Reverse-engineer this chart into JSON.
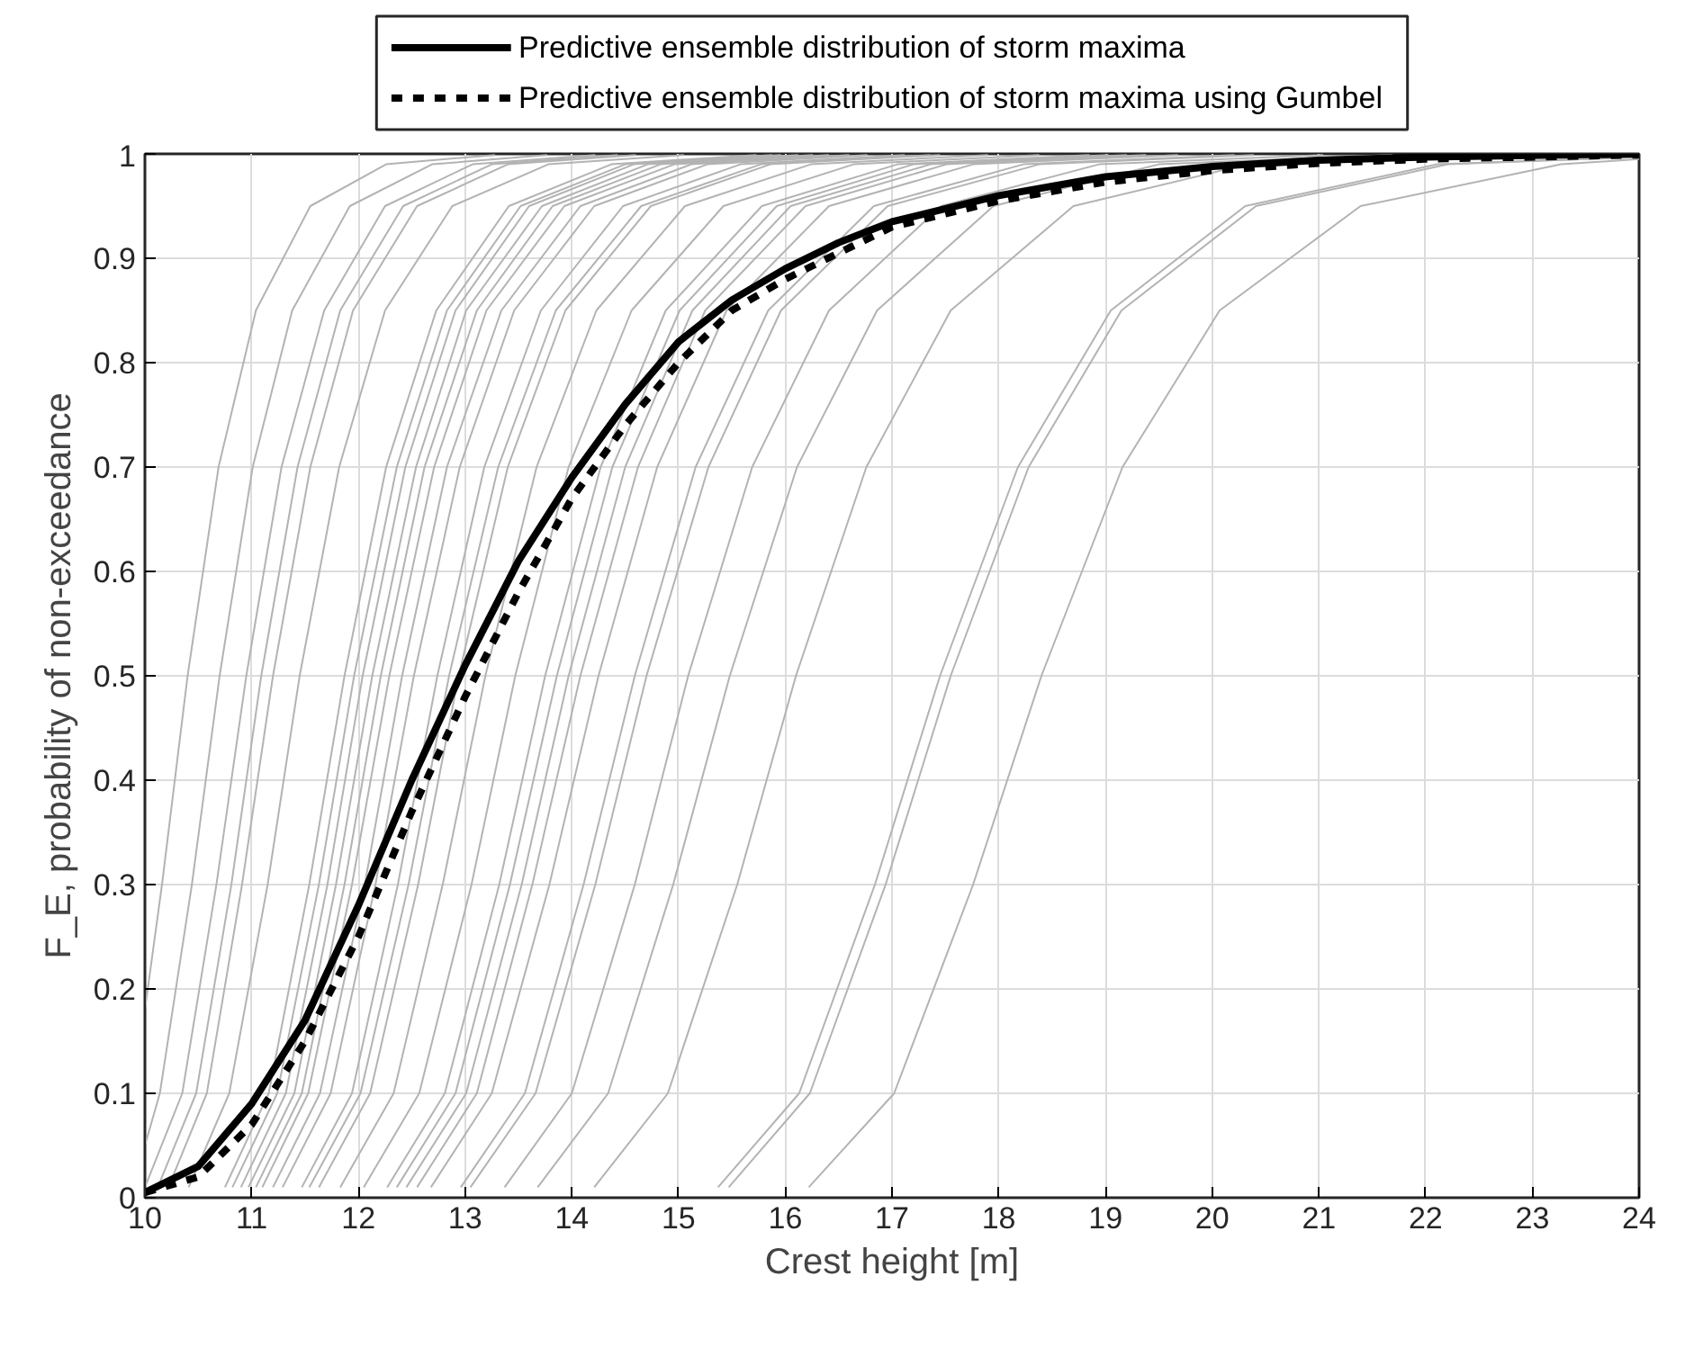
{
  "chart_data": {
    "type": "line",
    "xlabel": "Crest height [m]",
    "ylabel": "F_E, probability of non-exceedance",
    "xlim": [
      10,
      24
    ],
    "ylim": [
      0,
      1
    ],
    "xticks": [
      10,
      11,
      12,
      13,
      14,
      15,
      16,
      17,
      18,
      19,
      20,
      21,
      22,
      23,
      24
    ],
    "yticks": [
      0,
      0.1,
      0.2,
      0.3,
      0.4,
      0.5,
      0.6,
      0.7,
      0.8,
      0.9,
      1
    ],
    "grid": true,
    "legend": "top",
    "line_style": "solid",
    "marker": "none",
    "series": [
      {
        "color": "#b3b3b3",
        "x": [
          10,
          10.16,
          10.4,
          10.69,
          11.04,
          11.55,
          12.26,
          13.28
        ],
        "values": [
          0.18,
          0.3,
          0.5,
          0.7,
          0.85,
          0.95,
          0.99,
          0.999
        ]
      },
      {
        "color": "#b3b3b3",
        "x": [
          10,
          10.14,
          10.44,
          10.7,
          11.01,
          11.38,
          11.92,
          12.69,
          13.77
        ],
        "values": [
          0.05,
          0.1,
          0.3,
          0.5,
          0.7,
          0.85,
          0.95,
          0.99,
          0.999
        ]
      },
      {
        "color": "#b3b3b3",
        "x": [
          10.0,
          10.35,
          10.67,
          10.95,
          11.28,
          11.68,
          12.25,
          13.07,
          14.22
        ],
        "values": [
          0.01,
          0.1,
          0.3,
          0.5,
          0.7,
          0.85,
          0.95,
          0.99,
          0.999
        ]
      },
      {
        "color": "#b3b3b3",
        "x": [
          10.12,
          10.48,
          10.81,
          11.09,
          11.43,
          11.83,
          12.42,
          13.25,
          14.43
        ],
        "values": [
          0.01,
          0.1,
          0.3,
          0.5,
          0.7,
          0.85,
          0.95,
          0.99,
          0.999
        ]
      },
      {
        "color": "#b3b3b3",
        "x": [
          10.22,
          10.58,
          10.91,
          11.2,
          11.55,
          11.95,
          12.55,
          13.4,
          14.6
        ],
        "values": [
          0.01,
          0.1,
          0.3,
          0.5,
          0.7,
          0.85,
          0.95,
          0.99,
          0.999
        ]
      },
      {
        "color": "#b3b3b3",
        "x": [
          10.41,
          10.79,
          11.15,
          11.45,
          11.82,
          12.25,
          12.88,
          13.78,
          15.05
        ],
        "values": [
          0.01,
          0.1,
          0.3,
          0.5,
          0.7,
          0.85,
          0.95,
          0.99,
          0.999
        ]
      },
      {
        "color": "#b3b3b3",
        "x": [
          10.75,
          11.16,
          11.54,
          11.87,
          12.26,
          12.73,
          13.41,
          14.37,
          15.73
        ],
        "values": [
          0.01,
          0.1,
          0.3,
          0.5,
          0.7,
          0.85,
          0.95,
          0.99,
          0.999
        ]
      },
      {
        "color": "#b3b3b3",
        "x": [
          10.82,
          11.24,
          11.63,
          11.96,
          12.36,
          12.83,
          13.52,
          14.5,
          15.88
        ],
        "values": [
          0.01,
          0.1,
          0.3,
          0.5,
          0.7,
          0.85,
          0.95,
          0.99,
          0.999
        ]
      },
      {
        "color": "#b3b3b3",
        "x": [
          10.9,
          11.32,
          11.71,
          12.04,
          12.44,
          12.91,
          13.6,
          14.58,
          15.96
        ],
        "values": [
          0.01,
          0.1,
          0.3,
          0.5,
          0.7,
          0.85,
          0.95,
          0.99,
          0.999
        ]
      },
      {
        "color": "#b3b3b3",
        "x": [
          10.97,
          11.4,
          11.79,
          12.13,
          12.54,
          13.01,
          13.72,
          14.71,
          16.12
        ],
        "values": [
          0.01,
          0.1,
          0.3,
          0.5,
          0.7,
          0.85,
          0.95,
          0.99,
          0.999
        ]
      },
      {
        "color": "#b3b3b3",
        "x": [
          11.04,
          11.47,
          11.87,
          12.21,
          12.62,
          13.11,
          13.82,
          14.83,
          16.26
        ],
        "values": [
          0.01,
          0.1,
          0.3,
          0.5,
          0.7,
          0.85,
          0.95,
          0.99,
          0.999
        ]
      },
      {
        "color": "#b3b3b3",
        "x": [
          11.1,
          11.53,
          11.94,
          12.29,
          12.71,
          13.2,
          13.93,
          14.96,
          16.41
        ],
        "values": [
          0.01,
          0.1,
          0.3,
          0.5,
          0.7,
          0.85,
          0.95,
          0.99,
          0.999
        ]
      },
      {
        "color": "#b3b3b3",
        "x": [
          11.2,
          11.64,
          12.06,
          12.41,
          12.83,
          13.34,
          14.08,
          15.12,
          16.6
        ],
        "values": [
          0.01,
          0.1,
          0.3,
          0.5,
          0.7,
          0.85,
          0.95,
          0.99,
          0.999
        ]
      },
      {
        "color": "#b3b3b3",
        "x": [
          11.29,
          11.74,
          12.16,
          12.52,
          12.95,
          13.46,
          14.21,
          15.27,
          16.77
        ],
        "values": [
          0.01,
          0.1,
          0.3,
          0.5,
          0.7,
          0.85,
          0.95,
          0.99,
          0.999
        ]
      },
      {
        "color": "#b3b3b3",
        "x": [
          11.47,
          11.94,
          12.37,
          12.74,
          13.18,
          13.71,
          14.48,
          15.58,
          17.12
        ],
        "values": [
          0.01,
          0.1,
          0.3,
          0.5,
          0.7,
          0.85,
          0.95,
          0.99,
          0.999
        ]
      },
      {
        "color": "#b3b3b3",
        "x": [
          11.54,
          12.02,
          12.47,
          12.85,
          13.31,
          13.85,
          14.65,
          15.77,
          17.36
        ],
        "values": [
          0.01,
          0.1,
          0.3,
          0.5,
          0.7,
          0.85,
          0.95,
          0.99,
          0.999
        ]
      },
      {
        "color": "#b3b3b3",
        "x": [
          11.63,
          12.11,
          12.56,
          12.94,
          13.4,
          13.94,
          14.74,
          15.86,
          17.45
        ],
        "values": [
          0.01,
          0.1,
          0.3,
          0.5,
          0.7,
          0.85,
          0.95,
          0.99,
          0.999
        ]
      },
      {
        "color": "#b3b3b3",
        "x": [
          11.83,
          12.33,
          12.79,
          13.19,
          13.67,
          14.23,
          15.06,
          16.24,
          17.9
        ],
        "values": [
          0.01,
          0.1,
          0.3,
          0.5,
          0.7,
          0.85,
          0.95,
          0.99,
          0.999
        ]
      },
      {
        "color": "#b3b3b3",
        "x": [
          12.05,
          12.57,
          13.06,
          13.47,
          13.97,
          14.56,
          15.42,
          16.64,
          18.38
        ],
        "values": [
          0.01,
          0.1,
          0.3,
          0.5,
          0.7,
          0.85,
          0.95,
          0.99,
          0.999
        ]
      },
      {
        "color": "#b3b3b3",
        "x": [
          12.27,
          12.81,
          13.32,
          13.75,
          14.27,
          14.88,
          15.78,
          17.05,
          18.85
        ],
        "values": [
          0.01,
          0.1,
          0.3,
          0.5,
          0.7,
          0.85,
          0.95,
          0.99,
          0.999
        ]
      },
      {
        "color": "#b3b3b3",
        "x": [
          12.36,
          12.91,
          13.42,
          13.86,
          14.38,
          15.01,
          15.92,
          17.2,
          19.03
        ],
        "values": [
          0.01,
          0.1,
          0.3,
          0.5,
          0.7,
          0.85,
          0.95,
          0.99,
          0.999
        ]
      },
      {
        "color": "#b3b3b3",
        "x": [
          12.45,
          13.01,
          13.53,
          13.97,
          14.5,
          15.13,
          16.05,
          17.36,
          19.2
        ],
        "values": [
          0.01,
          0.1,
          0.3,
          0.5,
          0.7,
          0.85,
          0.95,
          0.99,
          0.999
        ]
      },
      {
        "color": "#b3b3b3",
        "x": [
          12.55,
          13.11,
          13.63,
          14.08,
          14.62,
          15.25,
          16.19,
          17.51,
          19.38
        ],
        "values": [
          0.01,
          0.1,
          0.3,
          0.5,
          0.7,
          0.85,
          0.95,
          0.99,
          0.999
        ]
      },
      {
        "color": "#b3b3b3",
        "x": [
          12.68,
          13.25,
          13.79,
          14.25,
          14.8,
          15.45,
          16.41,
          17.76,
          19.68
        ],
        "values": [
          0.01,
          0.1,
          0.3,
          0.5,
          0.7,
          0.85,
          0.95,
          0.99,
          0.999
        ]
      },
      {
        "color": "#b3b3b3",
        "x": [
          12.96,
          13.56,
          14.11,
          14.59,
          15.16,
          15.84,
          16.83,
          18.23,
          20.21
        ],
        "values": [
          0.01,
          0.1,
          0.3,
          0.5,
          0.7,
          0.85,
          0.95,
          0.99,
          0.999
        ]
      },
      {
        "color": "#b3b3b3",
        "x": [
          13.05,
          13.66,
          14.22,
          14.7,
          15.28,
          15.96,
          16.96,
          18.38,
          20.39
        ],
        "values": [
          0.01,
          0.1,
          0.3,
          0.5,
          0.7,
          0.85,
          0.95,
          0.99,
          0.999
        ]
      },
      {
        "color": "#b3b3b3",
        "x": [
          13.37,
          14.0,
          14.59,
          15.09,
          15.69,
          16.41,
          17.46,
          18.94,
          21.04
        ],
        "values": [
          0.01,
          0.1,
          0.3,
          0.5,
          0.7,
          0.85,
          0.95,
          0.99,
          0.999
        ]
      },
      {
        "color": "#b3b3b3",
        "x": [
          13.68,
          14.34,
          14.95,
          15.48,
          16.11,
          16.86,
          17.95,
          19.5,
          21.69
        ],
        "values": [
          0.01,
          0.1,
          0.3,
          0.5,
          0.7,
          0.85,
          0.95,
          0.99,
          0.999
        ]
      },
      {
        "color": "#b3b3b3",
        "x": [
          14.21,
          14.9,
          15.55,
          16.1,
          16.76,
          17.55,
          18.7,
          20.33,
          22.64
        ],
        "values": [
          0.01,
          0.1,
          0.3,
          0.5,
          0.7,
          0.85,
          0.95,
          0.99,
          0.999
        ]
      },
      {
        "color": "#b3b3b3",
        "x": [
          15.37,
          16.13,
          16.84,
          17.45,
          18.18,
          19.05,
          20.31,
          22.11,
          24
        ],
        "values": [
          0.01,
          0.1,
          0.3,
          0.5,
          0.7,
          0.85,
          0.95,
          0.99,
          0.997
        ]
      },
      {
        "color": "#b3b3b3",
        "x": [
          15.47,
          16.23,
          16.94,
          17.55,
          18.28,
          19.15,
          20.41,
          22.21,
          24
        ],
        "values": [
          0.01,
          0.1,
          0.3,
          0.5,
          0.7,
          0.85,
          0.95,
          0.99,
          0.997
        ]
      },
      {
        "color": "#b3b3b3",
        "x": [
          16.22,
          17.02,
          17.76,
          18.4,
          19.16,
          20.07,
          21.39,
          23.27,
          24
        ],
        "values": [
          0.01,
          0.1,
          0.3,
          0.5,
          0.7,
          0.85,
          0.95,
          0.99,
          0.995
        ]
      },
      {
        "name": "Predictive ensemble distribution of storm maxima",
        "color": "#000000",
        "x": [
          10,
          10.5,
          11,
          11.5,
          12,
          12.5,
          13,
          13.5,
          14,
          14.5,
          15,
          15.5,
          16,
          16.5,
          17,
          18,
          19,
          20,
          21,
          22,
          24
        ],
        "values": [
          0.005,
          0.03,
          0.09,
          0.17,
          0.28,
          0.4,
          0.51,
          0.61,
          0.69,
          0.76,
          0.82,
          0.86,
          0.89,
          0.915,
          0.935,
          0.96,
          0.978,
          0.988,
          0.994,
          0.997,
          1.0
        ]
      },
      {
        "name": "Predictive ensemble distribution of storm maxima using Gumbel",
        "color": "#000000",
        "line_style": "dashed",
        "x": [
          10,
          10.5,
          11,
          11.5,
          12,
          12.5,
          13,
          13.5,
          14,
          14.5,
          15,
          15.5,
          16,
          16.5,
          17,
          18,
          19,
          20,
          21,
          22,
          24
        ],
        "values": [
          0.005,
          0.02,
          0.07,
          0.15,
          0.25,
          0.37,
          0.48,
          0.58,
          0.67,
          0.74,
          0.8,
          0.85,
          0.88,
          0.905,
          0.93,
          0.955,
          0.973,
          0.984,
          0.991,
          0.995,
          0.999
        ]
      }
    ]
  }
}
